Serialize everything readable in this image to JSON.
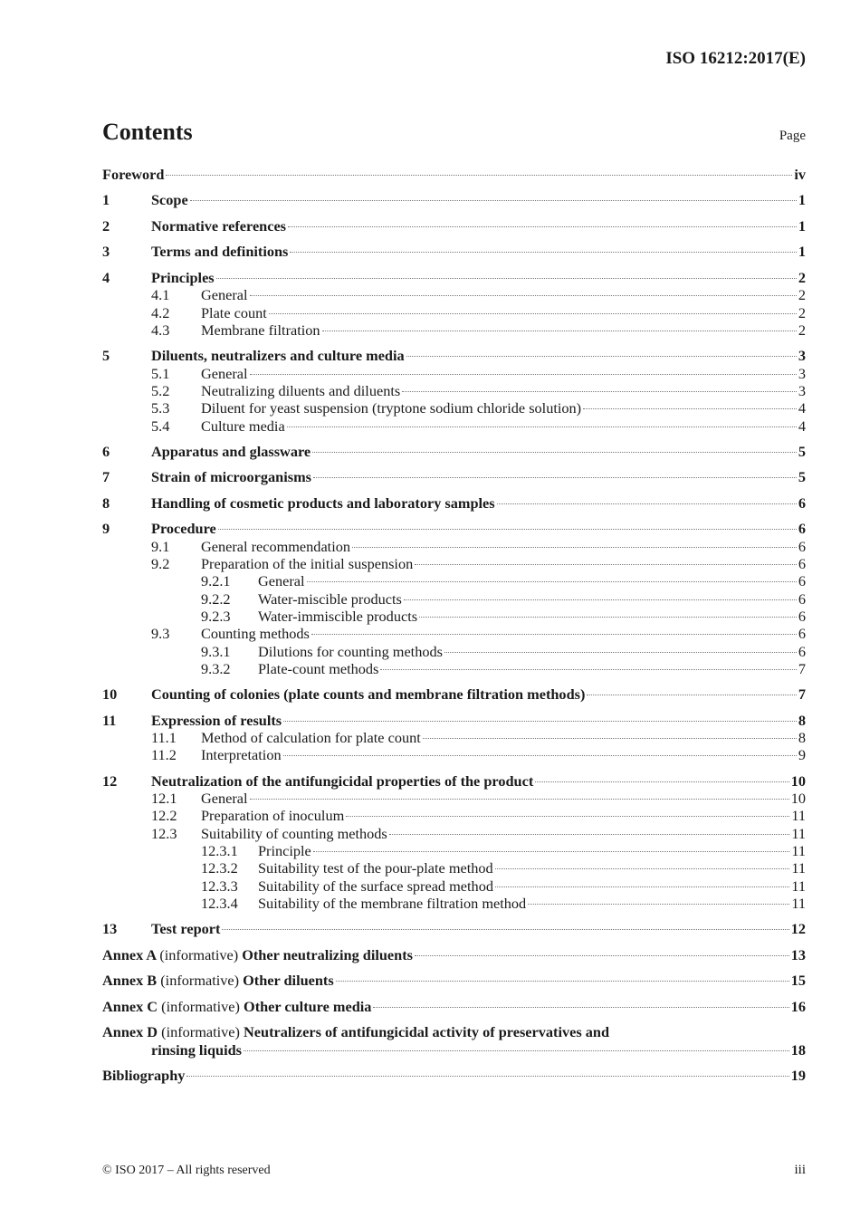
{
  "header": {
    "doc_id": "ISO 16212:2017(E)"
  },
  "contents": {
    "title": "Contents",
    "page_label": "Page"
  },
  "toc": [
    {
      "level": 0,
      "num": "",
      "title": "Foreword",
      "page": "iv"
    },
    {
      "level": 0,
      "num": "1",
      "title": "Scope",
      "page": "1"
    },
    {
      "level": 0,
      "num": "2",
      "title": "Normative references",
      "page": "1"
    },
    {
      "level": 0,
      "num": "3",
      "title": "Terms and definitions",
      "page": "1"
    },
    {
      "level": 0,
      "num": "4",
      "title": "Principles",
      "page": "2"
    },
    {
      "level": 1,
      "num": "4.1",
      "title": "General",
      "page": "2"
    },
    {
      "level": 1,
      "num": "4.2",
      "title": "Plate count",
      "page": "2"
    },
    {
      "level": 1,
      "num": "4.3",
      "title": "Membrane filtration",
      "page": "2"
    },
    {
      "level": 0,
      "num": "5",
      "title": "Diluents, neutralizers and culture media",
      "page": "3"
    },
    {
      "level": 1,
      "num": "5.1",
      "title": "General",
      "page": "3"
    },
    {
      "level": 1,
      "num": "5.2",
      "title": "Neutralizing diluents and diluents",
      "page": "3"
    },
    {
      "level": 1,
      "num": "5.3",
      "title": "Diluent for yeast suspension (tryptone sodium chloride solution)",
      "page": "4"
    },
    {
      "level": 1,
      "num": "5.4",
      "title": "Culture media",
      "page": "4"
    },
    {
      "level": 0,
      "num": "6",
      "title": "Apparatus and glassware",
      "page": "5"
    },
    {
      "level": 0,
      "num": "7",
      "title": "Strain of microorganisms",
      "page": "5"
    },
    {
      "level": 0,
      "num": "8",
      "title": "Handling of cosmetic products and laboratory samples",
      "page": "6"
    },
    {
      "level": 0,
      "num": "9",
      "title": "Procedure",
      "page": "6"
    },
    {
      "level": 1,
      "num": "9.1",
      "title": "General recommendation",
      "page": "6"
    },
    {
      "level": 1,
      "num": "9.2",
      "title": "Preparation of the initial suspension",
      "page": "6"
    },
    {
      "level": 2,
      "num": "9.2.1",
      "title": "General",
      "page": "6"
    },
    {
      "level": 2,
      "num": "9.2.2",
      "title": "Water-miscible products",
      "page": "6"
    },
    {
      "level": 2,
      "num": "9.2.3",
      "title": "Water-immiscible products",
      "page": "6"
    },
    {
      "level": 1,
      "num": "9.3",
      "title": "Counting methods",
      "page": "6"
    },
    {
      "level": 2,
      "num": "9.3.1",
      "title": "Dilutions for counting methods",
      "page": "6"
    },
    {
      "level": 2,
      "num": "9.3.2",
      "title": "Plate-count methods",
      "page": "7"
    },
    {
      "level": 0,
      "num": "10",
      "title": "Counting of colonies (plate counts and membrane filtration methods)",
      "page": "7"
    },
    {
      "level": 0,
      "num": "11",
      "title": "Expression of results",
      "page": "8"
    },
    {
      "level": 1,
      "num": "11.1",
      "title": "Method of calculation for plate count",
      "page": "8"
    },
    {
      "level": 1,
      "num": "11.2",
      "title": "Interpretation",
      "page": "9"
    },
    {
      "level": 0,
      "num": "12",
      "title": "Neutralization of the antifungicidal properties of the product",
      "page": "10"
    },
    {
      "level": 1,
      "num": "12.1",
      "title": "General",
      "page": "10"
    },
    {
      "level": 1,
      "num": "12.2",
      "title": "Preparation of inoculum",
      "page": "11"
    },
    {
      "level": 1,
      "num": "12.3",
      "title": "Suitability of counting methods",
      "page": "11"
    },
    {
      "level": 2,
      "num": "12.3.1",
      "title": "Principle",
      "page": "11"
    },
    {
      "level": 2,
      "num": "12.3.2",
      "title": "Suitability test of the pour-plate method",
      "page": "11"
    },
    {
      "level": 2,
      "num": "12.3.3",
      "title": "Suitability of the surface spread method",
      "page": "11"
    },
    {
      "level": 2,
      "num": "12.3.4",
      "title": "Suitability of the membrane filtration method",
      "page": "11"
    },
    {
      "level": 0,
      "num": "13",
      "title": "Test report",
      "page": "12"
    },
    {
      "level": 0,
      "annex": "Annex A",
      "note": "(informative)",
      "title": "Other neutralizing diluents",
      "page": "13"
    },
    {
      "level": 0,
      "annex": "Annex B",
      "note": "(informative)",
      "title": "Other diluents",
      "page": "15"
    },
    {
      "level": 0,
      "annex": "Annex C",
      "note": "(informative)",
      "title": "Other culture media",
      "page": "16"
    },
    {
      "level": 0,
      "annex": "Annex D",
      "note": "(informative)",
      "title": "Neutralizers of antifungicidal activity of preservatives and",
      "title_cont": "rinsing liquids",
      "page": "18"
    },
    {
      "level": 0,
      "num": "",
      "title": "Bibliography",
      "page": "19"
    }
  ],
  "footer": {
    "copyright": "© ISO 2017 – All rights reserved",
    "page": "iii"
  }
}
